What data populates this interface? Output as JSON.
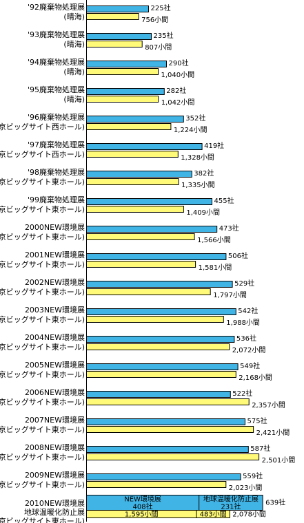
{
  "chart_data": {
    "type": "bar",
    "orientation": "horizontal",
    "colors": {
      "exhibitors": "#41b4e6",
      "booths": "#fffa78",
      "stroke": "#000000"
    },
    "scale": {
      "exhibitors_max": 700,
      "booths_max": 2800
    },
    "categories": [
      {
        "line1": "'92廃棄物処理展",
        "line2": "(晴海)",
        "exhibitors": 225,
        "booths": 756,
        "exhibitors_label": "225社",
        "booths_label": "756小間"
      },
      {
        "line1": "'93廃棄物処理展",
        "line2": "(晴海)",
        "exhibitors": 235,
        "booths": 807,
        "exhibitors_label": "235社",
        "booths_label": "807小間"
      },
      {
        "line1": "'94廃棄物処理展",
        "line2": "(晴海)",
        "exhibitors": 290,
        "booths": 1040,
        "exhibitors_label": "290社",
        "booths_label": "1,040小間"
      },
      {
        "line1": "'95廃棄物処理展",
        "line2": "(晴海)",
        "exhibitors": 282,
        "booths": 1042,
        "exhibitors_label": "282社",
        "booths_label": "1,042小間"
      },
      {
        "line1": "'96廃棄物処理展",
        "line2": "(東京ビッグサイト西ホール)",
        "exhibitors": 352,
        "booths": 1224,
        "exhibitors_label": "352社",
        "booths_label": "1,224小間"
      },
      {
        "line1": "'97廃棄物処理展",
        "line2": "(東京ビッグサイト西ホール)",
        "exhibitors": 419,
        "booths": 1328,
        "exhibitors_label": "419社",
        "booths_label": "1,328小間"
      },
      {
        "line1": "'98廃棄物処理展",
        "line2": "(東京ビッグサイト東ホール)",
        "exhibitors": 382,
        "booths": 1335,
        "exhibitors_label": "382社",
        "booths_label": "1,335小間"
      },
      {
        "line1": "'99廃棄物処理展",
        "line2": "(東京ビッグサイト東ホール)",
        "exhibitors": 455,
        "booths": 1409,
        "exhibitors_label": "455社",
        "booths_label": "1,409小間"
      },
      {
        "line1": "2000NEW環境展",
        "line2": "(東京ビッグサイト東ホール)",
        "exhibitors": 473,
        "booths": 1566,
        "exhibitors_label": "473社",
        "booths_label": "1,566小間"
      },
      {
        "line1": "2001NEW環境展",
        "line2": "(東京ビッグサイト東ホール)",
        "exhibitors": 506,
        "booths": 1581,
        "exhibitors_label": "506社",
        "booths_label": "1,581小間"
      },
      {
        "line1": "2002NEW環境展",
        "line2": "(東京ビッグサイト東ホール)",
        "exhibitors": 529,
        "booths": 1797,
        "exhibitors_label": "529社",
        "booths_label": "1,797小間"
      },
      {
        "line1": "2003NEW環境展",
        "line2": "(東京ビッグサイト東ホール)",
        "exhibitors": 542,
        "booths": 1988,
        "exhibitors_label": "542社",
        "booths_label": "1,988小間"
      },
      {
        "line1": "2004NEW環境展",
        "line2": "(東京ビッグサイト東ホール)",
        "exhibitors": 536,
        "booths": 2072,
        "exhibitors_label": "536社",
        "booths_label": "2,072小間"
      },
      {
        "line1": "2005NEW環境展",
        "line2": "(東京ビッグサイト東ホール)",
        "exhibitors": 549,
        "booths": 2168,
        "exhibitors_label": "549社",
        "booths_label": "2,168小間"
      },
      {
        "line1": "2006NEW環境展",
        "line2": "(東京ビッグサイト東ホール)",
        "exhibitors": 522,
        "booths": 2357,
        "exhibitors_label": "522社",
        "booths_label": "2,357小間"
      },
      {
        "line1": "2007NEW環境展",
        "line2": "(東京ビッグサイト東ホール)",
        "exhibitors": 575,
        "booths": 2421,
        "exhibitors_label": "575社",
        "booths_label": "2,421小間"
      },
      {
        "line1": "2008NEW環境展",
        "line2": "(東京ビッグサイト東ホール)",
        "exhibitors": 587,
        "booths": 2501,
        "exhibitors_label": "587社",
        "booths_label": "2,501小間"
      },
      {
        "line1": "2009NEW環境展",
        "line2": "(東京ビッグサイト東ホール)",
        "exhibitors": 559,
        "booths": 2023,
        "exhibitors_label": "559社",
        "booths_label": "2,023小間"
      }
    ],
    "final": {
      "line1": "2010NEW環境展",
      "line2": "地球温暖化防止展",
      "line3": "(東京ビッグサイト東ホール)",
      "segment_names": [
        "NEW環境展",
        "地球温暖化防止展"
      ],
      "exhibitors_segments": [
        408,
        231
      ],
      "exhibitors_segment_labels": [
        "408社",
        "231社"
      ],
      "exhibitors_total": 639,
      "exhibitors_total_label": "639社",
      "booths_segments": [
        1595,
        483
      ],
      "booths_segment_labels": [
        "1,595小間",
        "483小間"
      ],
      "booths_total": 2078,
      "booths_total_label": "2,078小間"
    }
  }
}
